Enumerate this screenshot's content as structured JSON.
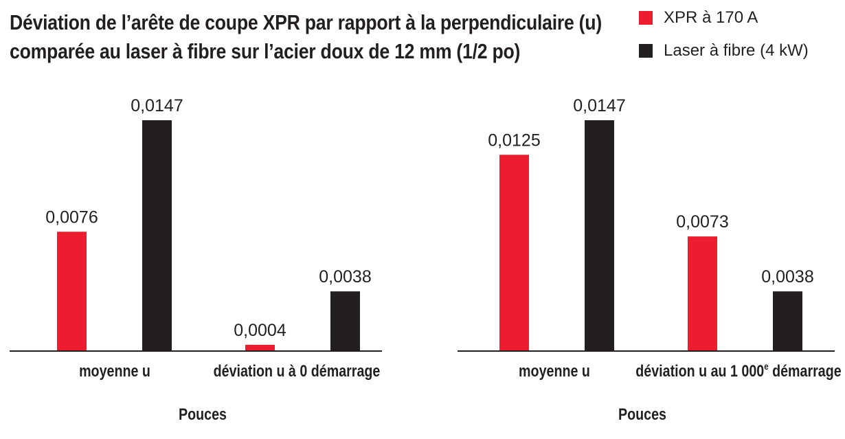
{
  "title_lines": [
    "Déviation de l’arête de coupe XPR par rapport à la perpendiculaire (u)",
    "comparée au laser à fibre sur l’acier doux de 12 mm (1/2 po)"
  ],
  "legend": [
    {
      "label": "XPR à 170 A",
      "color": "#ed1c2e"
    },
    {
      "label": "Laser à fibre (4 kW)",
      "color": "#231f20"
    }
  ],
  "chart_data": [
    {
      "type": "bar",
      "categories": [
        "moyenne u",
        "déviation u à 0 démarrage"
      ],
      "series": [
        {
          "name": "XPR à 170 A",
          "values": [
            0.0076,
            0.0004
          ],
          "labels": [
            "0,0076",
            "0,0004"
          ]
        },
        {
          "name": "Laser à fibre (4 kW)",
          "values": [
            0.0147,
            0.0038
          ],
          "labels": [
            "0,0147",
            "0,0038"
          ]
        }
      ],
      "xlabel": "Pouces",
      "ylim": [
        0,
        0.0147
      ]
    },
    {
      "type": "bar",
      "categories": [
        "moyenne u",
        "déviation u au 1 000e démarrage"
      ],
      "series": [
        {
          "name": "XPR à 170 A",
          "values": [
            0.0125,
            0.0073
          ],
          "labels": [
            "0,0125",
            "0,0073"
          ]
        },
        {
          "name": "Laser à fibre (4 kW)",
          "values": [
            0.0147,
            0.0038
          ],
          "labels": [
            "0,0147",
            "0,0038"
          ]
        }
      ],
      "xlabel": "Pouces",
      "ylim": [
        0,
        0.0147
      ]
    }
  ]
}
